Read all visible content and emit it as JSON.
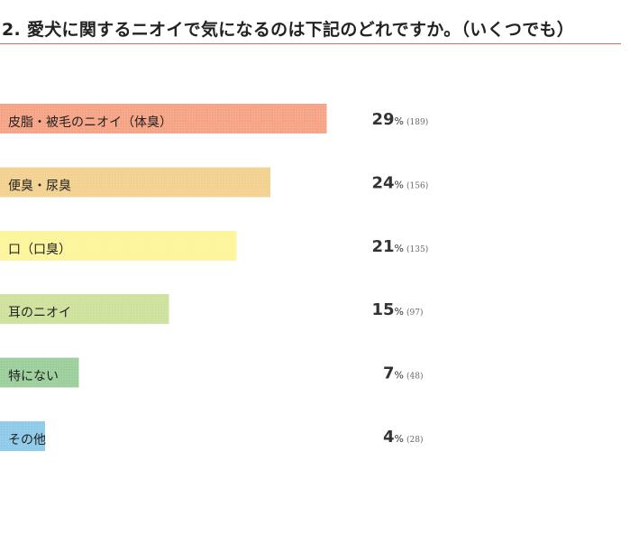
{
  "chart_data": {
    "type": "bar",
    "orientation": "horizontal",
    "title": "2. 愛犬に関するニオイで気になるのは下記のどれですか。（いくつでも）",
    "xlabel": "",
    "ylabel": "",
    "xlim": [
      0,
      32
    ],
    "grid": false,
    "legend": "none",
    "unit": "%",
    "categories": [
      "皮脂・被毛のニオイ（体臭）",
      "便臭・尿臭",
      "口（口臭）",
      "耳のニオイ",
      "特にない",
      "その他"
    ],
    "values": [
      29,
      24,
      21,
      15,
      7,
      4
    ],
    "counts": [
      "(189)",
      "(156)",
      "(135)",
      "(97)",
      "(48)",
      "(28)"
    ],
    "colors": [
      "#f6a486",
      "#f2d191",
      "#fdf59b",
      "#cfe29d",
      "#9ccf9c",
      "#8fcbe9"
    ]
  }
}
